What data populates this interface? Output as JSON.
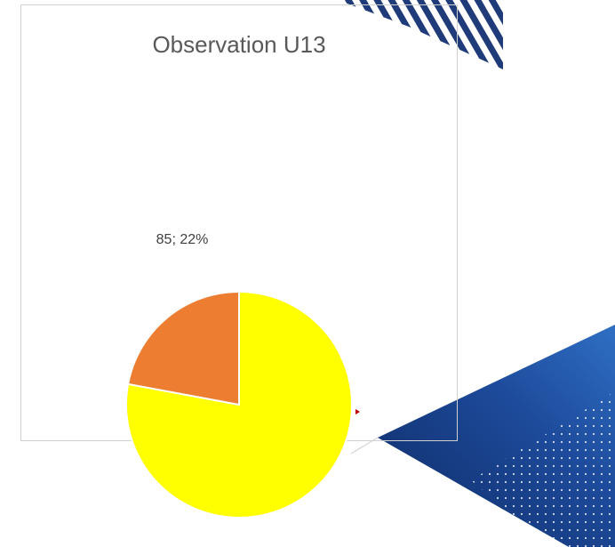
{
  "chart_data": {
    "type": "pie",
    "title": "Observation U13",
    "values": [
      300,
      85
    ],
    "value_labels": [
      null,
      "85; 22%"
    ],
    "colors": [
      "#ffff00",
      "#ed7d31"
    ]
  }
}
